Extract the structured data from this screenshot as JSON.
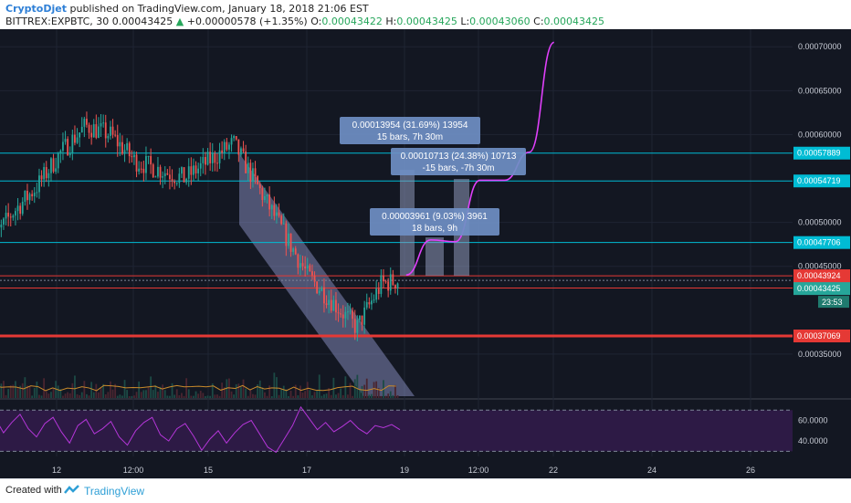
{
  "header": {
    "author": "CryptoDjet",
    "published": "published on TradingView.com, January 18, 2018 21:06 EST",
    "symbol": "BITTREX:EXPBTC, 30",
    "last": "0.00043425",
    "arrow": "▲",
    "change": "+0.00000578 (+1.35%)",
    "o_label": "O:",
    "o_val": "0.00043422",
    "h_label": "H:",
    "h_val": "0.00043425",
    "l_label": "L:",
    "l_val": "0.00043060",
    "c_label": "C:",
    "c_val": "0.00043425"
  },
  "footer": {
    "created": "Created with",
    "brand": "TradingView",
    "logo_icon": "tradingview-logo-icon"
  },
  "colors": {
    "background": "#131722",
    "grid": "#1f2433",
    "cyan": "#00bcd4",
    "red": "#e53935",
    "up": "#26a69a",
    "down": "#ef5350",
    "magenta": "#e040fb",
    "channel": "#9aa0d6",
    "label_bg": "#6f8fc4",
    "rsi": "#b536d9",
    "rsi_band": "#2d1a45"
  },
  "chart_data": [
    {
      "type": "candlestick",
      "title": "BITTREX:EXPBTC, 30",
      "y_axis_ticks": [
        "0.00070000",
        "0.00065000",
        "0.00060000",
        "0.00050000",
        "0.00045000",
        "0.00035000"
      ],
      "x_axis_ticks": [
        "12",
        "12:00",
        "15",
        "17",
        "19",
        "12:00",
        "22",
        "24",
        "26"
      ],
      "ylim": [
        0.0003,
        0.00072
      ],
      "close_path": {
        "x": [
          "Jan 10 12:00",
          "Jan 11 00:00",
          "Jan 11 12:00",
          "Jan 12 00:00",
          "Jan 12 12:00",
          "Jan 13 00:00",
          "Jan 13 12:00",
          "Jan 14 00:00",
          "Jan 14 12:00",
          "Jan 15 00:00",
          "Jan 15 12:00",
          "Jan 16 00:00",
          "Jan 16 12:00",
          "Jan 17 00:00",
          "Jan 17 12:00",
          "Jan 18 00:00",
          "Jan 18 12:00",
          "Jan 18 21:00"
        ],
        "y": [
          0.00047,
          0.00051,
          0.00054,
          0.00058,
          0.00061,
          0.0006,
          0.00057,
          0.00056,
          0.00055,
          0.00057,
          0.00059,
          0.00054,
          0.00049,
          0.00044,
          0.00041,
          0.00038,
          0.00043,
          0.000434
        ]
      },
      "horizontal_levels": [
        {
          "price": "0.00057889",
          "color": "cyan"
        },
        {
          "price": "0.00054719",
          "color": "cyan"
        },
        {
          "price": "0.00047706",
          "color": "cyan"
        },
        {
          "price": "0.00043924",
          "color": "red"
        },
        {
          "price": "0.00042528",
          "color": "red"
        },
        {
          "price": "0.00037069",
          "color": "red"
        }
      ],
      "last_price_label": "0.00043425",
      "countdown_label": "23:53",
      "projection_path": {
        "x": [
          "Jan 19 00:00",
          "Jan 19 12:00",
          "Jan 20 00:00",
          "Jan 20 12:00",
          "Jan 21 00:00",
          "Jan 21 12:00",
          "Jan 22 00:00"
        ],
        "y": [
          0.00044,
          0.00048,
          0.000478,
          0.000548,
          0.000548,
          0.00058,
          0.000705
        ]
      },
      "measure_labels": [
        {
          "line1": "0.00013954 (31.69%) 13954",
          "line2": "15 bars, 7h 30m"
        },
        {
          "line1": "0.00010713 (24.38%) 10713",
          "line2": "-15 bars, -7h 30m"
        },
        {
          "line1": "0.00003961 (9.03%) 3961",
          "line2": "18 bars, 9h"
        }
      ]
    },
    {
      "type": "line",
      "title": "RSI",
      "y_axis_ticks": [
        "60.0000",
        "40.0000"
      ],
      "ylim": [
        25,
        80
      ],
      "bands": [
        70,
        30
      ],
      "values": [
        55,
        62,
        48,
        58,
        66,
        52,
        44,
        57,
        63,
        49,
        38,
        55,
        61,
        47,
        52,
        59,
        44,
        36,
        50,
        58,
        63,
        46,
        40,
        52,
        57,
        45,
        31,
        42,
        50,
        38,
        48,
        56,
        60,
        47,
        34,
        29,
        42,
        55,
        73,
        62,
        51,
        58,
        49,
        54,
        60,
        52,
        47,
        55,
        53,
        56,
        51
      ]
    }
  ]
}
